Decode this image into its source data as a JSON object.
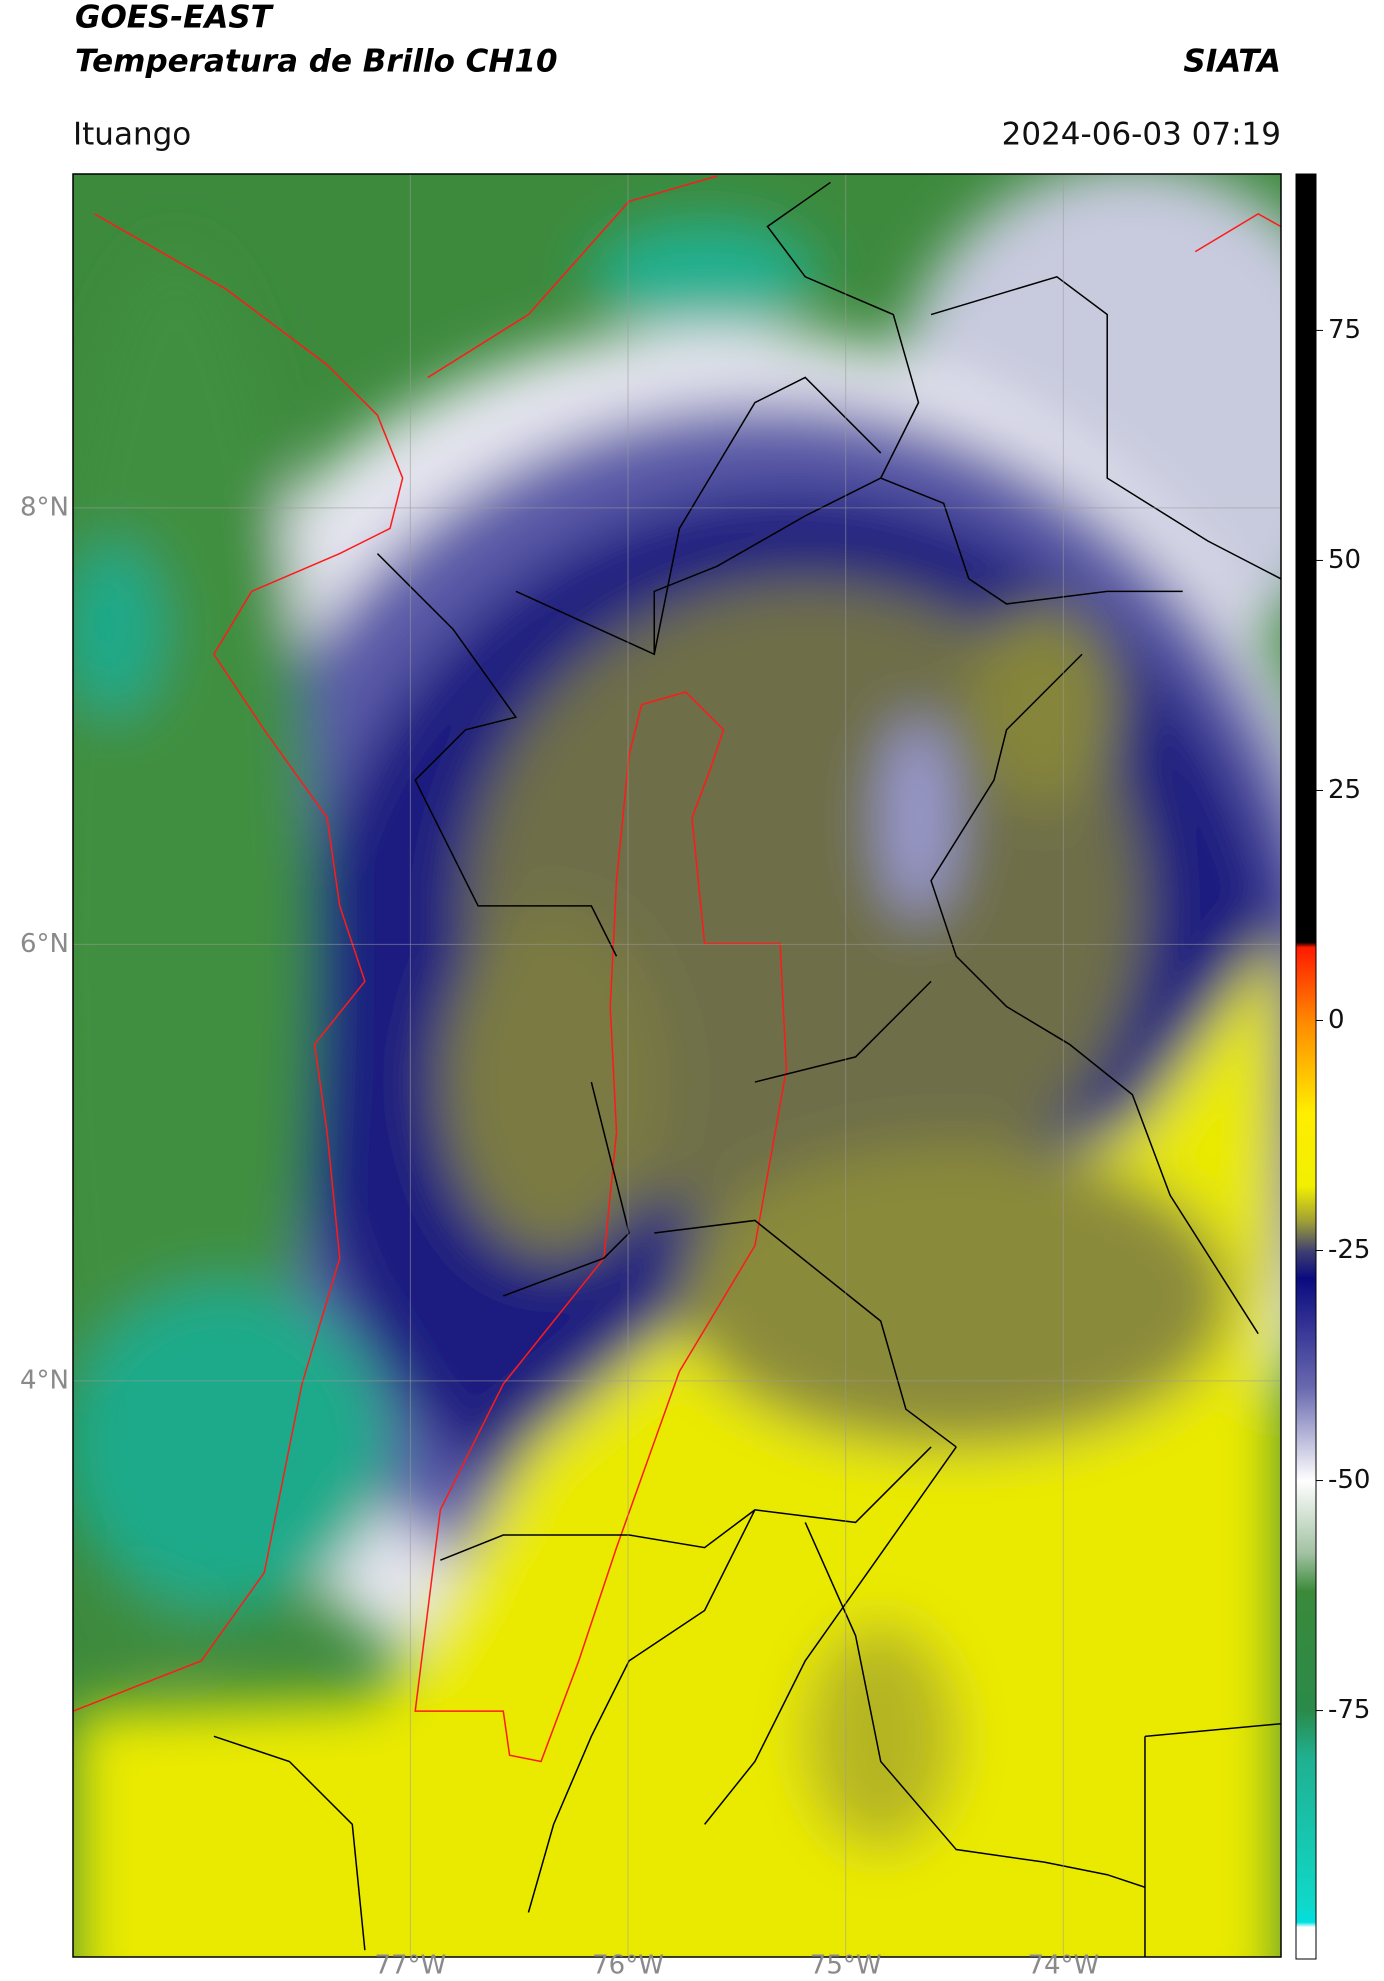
{
  "header": {
    "title": "GOES-EAST",
    "subtitle": "Temperatura de Brillo CH10",
    "source": "SIATA",
    "location": "Ituango",
    "datetime": "2024-06-03 07:19"
  },
  "chart_data": {
    "type": "map",
    "xlim": [
      -78.55,
      -73.0
    ],
    "ylim": [
      1.36,
      9.53
    ],
    "xticks": [
      {
        "value": -77,
        "label": "77°W"
      },
      {
        "value": -76,
        "label": "76°W"
      },
      {
        "value": -75,
        "label": "75°W"
      },
      {
        "value": -74,
        "label": "74°W"
      }
    ],
    "yticks": [
      {
        "value": 8,
        "label": "8°N"
      },
      {
        "value": 6,
        "label": "6°N"
      },
      {
        "value": 4,
        "label": "4°N"
      }
    ],
    "grid": true,
    "colorbar": {
      "lim": [
        -102,
        92
      ],
      "ticks": [
        75,
        50,
        25,
        0,
        -25,
        -50,
        -75
      ],
      "stops": [
        {
          "value": 92,
          "color": "#000000"
        },
        {
          "value": 8.5,
          "color": "#000000"
        },
        {
          "value": 8,
          "color": "#ff1a00"
        },
        {
          "value": 0,
          "color": "#ff8800"
        },
        {
          "value": -10,
          "color": "#ffee00"
        },
        {
          "value": -18,
          "color": "#f2ef00"
        },
        {
          "value": -22,
          "color": "#9a9a3a"
        },
        {
          "value": -25,
          "color": "#404070"
        },
        {
          "value": -28,
          "color": "#0a0a80"
        },
        {
          "value": -40,
          "color": "#6a6ab0"
        },
        {
          "value": -50,
          "color": "#ffffff"
        },
        {
          "value": -58,
          "color": "#a0c0a0"
        },
        {
          "value": -62,
          "color": "#3a8a3a"
        },
        {
          "value": -75,
          "color": "#2a8a4a"
        },
        {
          "value": -80,
          "color": "#20b090"
        },
        {
          "value": -96,
          "color": "#10d8c8"
        },
        {
          "value": -98,
          "color": "#00e0e0"
        },
        {
          "value": -98.5,
          "color": "#ffffff"
        },
        {
          "value": -102,
          "color": "#ffffff"
        }
      ]
    }
  }
}
